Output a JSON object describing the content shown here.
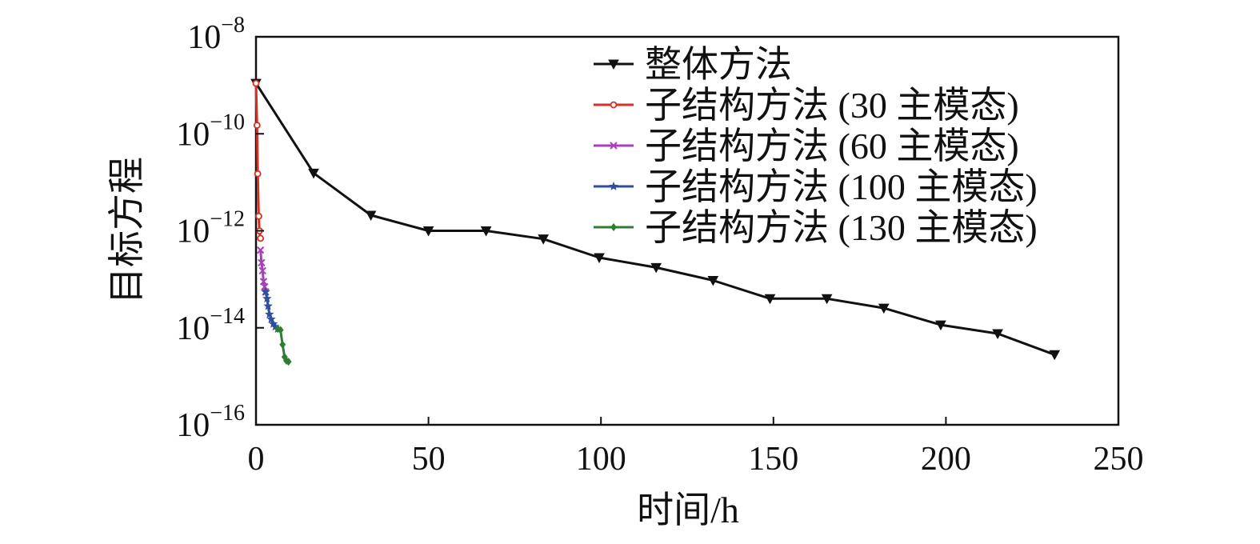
{
  "chart_data": {
    "type": "line",
    "title": "",
    "xlabel": "时间/h",
    "ylabel": "目标方程",
    "xlim": [
      0,
      250
    ],
    "ylim": [
      1e-16,
      1e-08
    ],
    "yscale": "log",
    "grid": false,
    "legend_position": "top-right",
    "x_ticks": [
      {
        "value": 0,
        "label": "0"
      },
      {
        "value": 50,
        "label": "50"
      },
      {
        "value": 100,
        "label": "100"
      },
      {
        "value": 150,
        "label": "150"
      },
      {
        "value": 200,
        "label": "200"
      },
      {
        "value": 250,
        "label": "250"
      }
    ],
    "y_ticks": [
      {
        "value": 1e-08,
        "base": "10",
        "exp": "−8"
      },
      {
        "value": 1e-10,
        "base": "10",
        "exp": "−10"
      },
      {
        "value": 1e-12,
        "base": "10",
        "exp": "−12"
      },
      {
        "value": 1e-14,
        "base": "10",
        "exp": "−14"
      },
      {
        "value": 1e-16,
        "base": "10",
        "exp": "−16"
      }
    ],
    "series": [
      {
        "name": "整体方法",
        "color": "#111111",
        "marker": "triangle-down",
        "x": [
          0,
          16.7,
          33.3,
          50,
          66.7,
          83.3,
          99.5,
          116,
          132.5,
          149,
          165.5,
          182,
          198.5,
          215,
          231.5
        ],
        "y": [
          1.1e-09,
          1.55e-11,
          2.1e-12,
          1e-12,
          1e-12,
          6.8e-13,
          2.8e-13,
          1.75e-13,
          9.5e-14,
          4e-14,
          4e-14,
          2.55e-14,
          1.15e-14,
          7.6e-15,
          2.8e-15
        ]
      },
      {
        "name": "子结构方法 (30 主模态)",
        "color": "#d62f23",
        "marker": "circle",
        "x": [
          0,
          0.3,
          0.5,
          0.8,
          1.0,
          1.3
        ],
        "y": [
          1.1e-09,
          1.5e-10,
          1.5e-11,
          2e-12,
          1e-12,
          7e-13
        ]
      },
      {
        "name": "子结构方法 (60 主模态)",
        "color": "#a640b8",
        "marker": "x",
        "x": [
          1.3,
          1.6,
          1.9,
          2.2,
          2.5,
          2.8
        ],
        "y": [
          4e-13,
          2.2e-13,
          1.5e-13,
          9e-14,
          7e-14,
          5.5e-14
        ]
      },
      {
        "name": "子结构方法 (100 主模态)",
        "color": "#2c4ea3",
        "marker": "star",
        "x": [
          2.8,
          3.2,
          3.5,
          3.9,
          4.4,
          5.0,
          5.6,
          6.3
        ],
        "y": [
          5.5e-14,
          4e-14,
          2.8e-14,
          1.9e-14,
          1.5e-14,
          1.2e-14,
          1.05e-14,
          9.5e-15
        ]
      },
      {
        "name": "子结构方法 (130 主模态)",
        "color": "#2e7d32",
        "marker": "diamond",
        "x": [
          6.3,
          7.1,
          7.7,
          8.3,
          8.8,
          9.4
        ],
        "y": [
          9.5e-15,
          9e-15,
          4.5e-15,
          2.5e-15,
          2.1e-15,
          2e-15
        ]
      }
    ]
  }
}
